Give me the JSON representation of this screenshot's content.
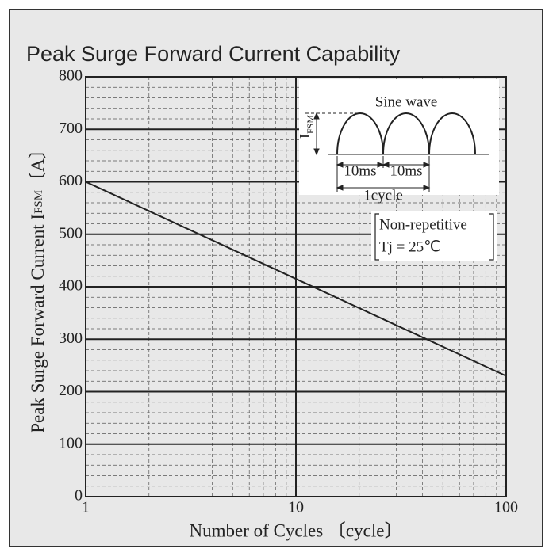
{
  "chart_data": {
    "type": "line",
    "title": "Peak Surge Forward Current Capability",
    "xlabel": "Number of Cycles 〔cycle〕",
    "ylabel": {
      "text": "Peak Surge Forward Current  I",
      "sub": "FSM",
      "unit": "〔A〕"
    },
    "log_x": true,
    "x": [
      1,
      100
    ],
    "series": [
      {
        "color": "#222222",
        "values": [
          600,
          230
        ]
      }
    ],
    "xlim": [
      1,
      100
    ],
    "xticks": [
      1,
      10,
      100
    ],
    "xminor": [
      2,
      3,
      4,
      5,
      6,
      7,
      8,
      9,
      20,
      30,
      40,
      50,
      60,
      70,
      80,
      90
    ],
    "ylim": [
      0,
      800
    ],
    "yticks": [
      0,
      100,
      200,
      300,
      400,
      500,
      600,
      700,
      800
    ],
    "yminor": [
      20,
      40,
      60,
      80,
      120,
      140,
      160,
      180,
      220,
      240,
      260,
      280,
      320,
      340,
      360,
      380,
      420,
      440,
      460,
      480,
      520,
      540,
      560,
      580,
      620,
      640,
      660,
      680,
      720,
      740,
      760,
      780
    ],
    "grid": true,
    "annotations": {
      "wave_title": "Sine wave",
      "peak_label": "I",
      "peak_sub": "FSM",
      "half1": "10ms",
      "half2": "10ms",
      "cycle": "1cycle",
      "cond1": "Non-repetitive",
      "cond2": "Tj = 25℃"
    }
  }
}
